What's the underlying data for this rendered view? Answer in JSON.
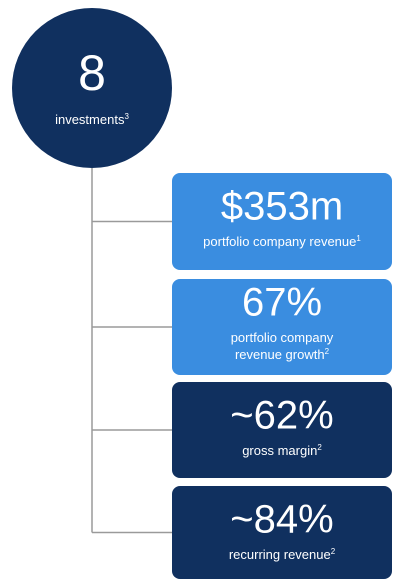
{
  "summary": {
    "value": "8",
    "label": "investments",
    "note": "3",
    "color": "#10305f"
  },
  "stats": [
    {
      "value": "$353m",
      "label": [
        "portfolio company revenue"
      ],
      "note": "1",
      "color": "#3a8de0"
    },
    {
      "value": "67%",
      "label": [
        "portfolio company",
        "revenue growth"
      ],
      "note": "2",
      "color": "#3a8de0"
    },
    {
      "value": "~62%",
      "label": [
        "gross margin"
      ],
      "note": "2",
      "color": "#10305f"
    },
    {
      "value": "~84%",
      "label": [
        "recurring revenue"
      ],
      "note": "2",
      "color": "#10305f"
    }
  ]
}
